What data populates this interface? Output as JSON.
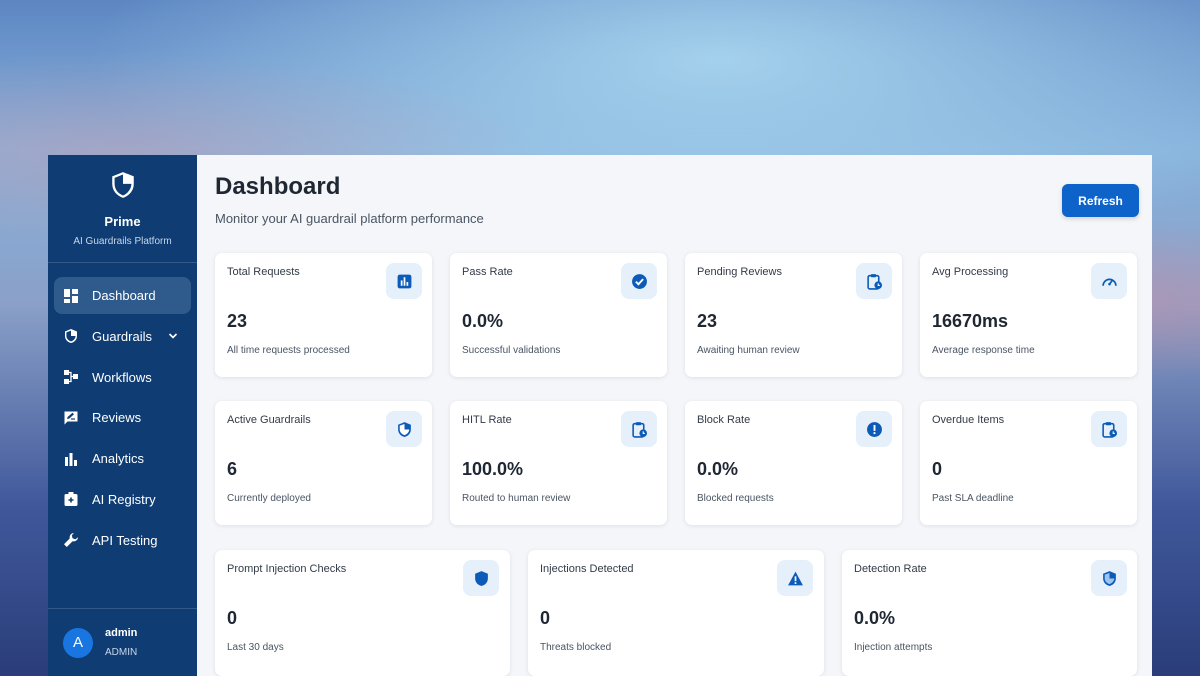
{
  "brand": {
    "title": "Prime",
    "subtitle": "AI Guardrails Platform",
    "logo_icon": "shield-icon"
  },
  "sidebar": {
    "items": [
      {
        "label": "Dashboard",
        "icon": "dashboard-icon",
        "active": true
      },
      {
        "label": "Guardrails",
        "icon": "shield-icon",
        "has_submenu": true
      },
      {
        "label": "Workflows",
        "icon": "workflow-icon"
      },
      {
        "label": "Reviews",
        "icon": "review-icon"
      },
      {
        "label": "Analytics",
        "icon": "bar-chart-icon"
      },
      {
        "label": "AI Registry",
        "icon": "registry-icon"
      },
      {
        "label": "API Testing",
        "icon": "wrench-icon"
      }
    ]
  },
  "user": {
    "initial": "A",
    "name": "admin",
    "role": "ADMIN"
  },
  "header": {
    "title": "Dashboard",
    "subtitle": "Monitor your AI guardrail platform performance",
    "refresh_label": "Refresh"
  },
  "stats": [
    {
      "label": "Total Requests",
      "value": "23",
      "desc": "All time requests processed",
      "icon": "bar-chart-icon"
    },
    {
      "label": "Pass Rate",
      "value": "0.0%",
      "desc": "Successful validations",
      "icon": "check-circle-icon"
    },
    {
      "label": "Pending Reviews",
      "value": "23",
      "desc": "Awaiting human review",
      "icon": "clipboard-clock-icon"
    },
    {
      "label": "Avg Processing",
      "value": "16670ms",
      "desc": "Average response time",
      "icon": "speedometer-icon"
    },
    {
      "label": "Active Guardrails",
      "value": "6",
      "desc": "Currently deployed",
      "icon": "shield-icon"
    },
    {
      "label": "HITL Rate",
      "value": "100.0%",
      "desc": "Routed to human review",
      "icon": "clipboard-clock-icon"
    },
    {
      "label": "Block Rate",
      "value": "0.0%",
      "desc": "Blocked requests",
      "icon": "alert-circle-icon"
    },
    {
      "label": "Overdue Items",
      "value": "0",
      "desc": "Past SLA deadline",
      "icon": "clipboard-clock-icon"
    },
    {
      "label": "Prompt Injection Checks",
      "value": "0",
      "desc": "Last 30 days",
      "icon": "shield-filled-icon"
    },
    {
      "label": "Injections Detected",
      "value": "0",
      "desc": "Threats blocked",
      "icon": "warning-icon"
    },
    {
      "label": "Detection Rate",
      "value": "0.0%",
      "desc": "Injection attempts",
      "icon": "shield-icon"
    }
  ],
  "colors": {
    "sidebar": "#0f3c73",
    "accent": "#0d63c9",
    "icon_bg": "#e5f0fb"
  }
}
